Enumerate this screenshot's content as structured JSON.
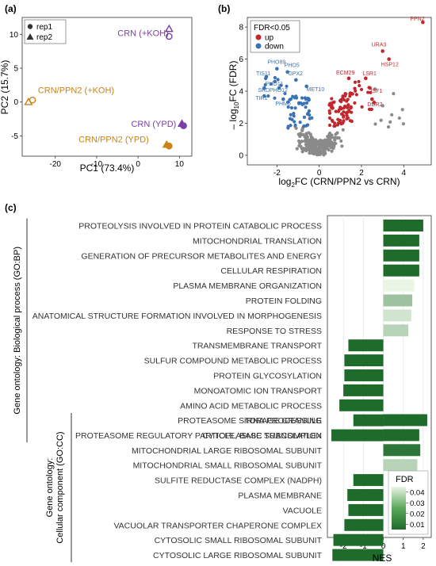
{
  "panels": {
    "a": "(a)",
    "b": "(b)",
    "c": "(c)"
  },
  "colors": {
    "purple": "#7a3fa3",
    "orange": "#c98316",
    "up": "#c0282d",
    "down": "#3a73b5",
    "ns": "#8a8a8a",
    "fdr_high": "#eaf5e6",
    "fdr_low": "#1f6b2c"
  },
  "chart_data": [
    {
      "id": "pca",
      "type": "scatter",
      "title": "",
      "xlabel": "PC1 (73.4%)",
      "ylabel": "PC2 (15.7%)",
      "xlim": [
        -28,
        13
      ],
      "ylim": [
        -8,
        12.5
      ],
      "xticks": [
        -20,
        -10,
        0,
        10
      ],
      "yticks": [
        -5,
        0,
        5,
        10
      ],
      "legend": {
        "position": "top-left",
        "items": [
          {
            "label": "rep1",
            "shape": "circle"
          },
          {
            "label": "rep2",
            "shape": "triangle"
          }
        ]
      },
      "groups": [
        {
          "label": "CRN (+KOH)",
          "color": "#7a3fa3",
          "filled": false,
          "points": [
            {
              "x": 7.5,
              "y": 10.8,
              "rep": "rep2"
            },
            {
              "x": 7.5,
              "y": 9.7,
              "rep": "rep1"
            }
          ]
        },
        {
          "label": "CRN/PPN2 (+KOH)",
          "color": "#c98316",
          "filled": false,
          "points": [
            {
              "x": -26.5,
              "y": 0.0,
              "rep": "rep2"
            },
            {
              "x": -25.5,
              "y": 0.3,
              "rep": "rep1"
            }
          ]
        },
        {
          "label": "CRN (YPD)",
          "color": "#7a3fa3",
          "filled": true,
          "points": [
            {
              "x": 10.6,
              "y": -3.2,
              "rep": "rep2"
            },
            {
              "x": 11.0,
              "y": -3.5,
              "rep": "rep1"
            }
          ]
        },
        {
          "label": "CRN/PPN2 (YPD)",
          "color": "#c98316",
          "filled": true,
          "points": [
            {
              "x": 6.9,
              "y": -6.3,
              "rep": "rep2"
            },
            {
              "x": 7.5,
              "y": -6.5,
              "rep": "rep1"
            }
          ]
        }
      ]
    },
    {
      "id": "volcano",
      "type": "scatter",
      "title": "",
      "xlabel_main": "log",
      "xlabel_sub": "2",
      "xlabel_rest": "FC (CRN/PPN2 vs CRN)",
      "ylabel_neg": "– log",
      "ylabel_sub": "10",
      "ylabel_rest": "FC (FDR)",
      "xlim": [
        -3.4,
        5.3
      ],
      "ylim": [
        -0.6,
        8.6
      ],
      "xticks": [
        -2,
        0,
        2,
        4
      ],
      "yticks": [
        0,
        2,
        4,
        6,
        8
      ],
      "legend": {
        "title": "FDR<0.05",
        "position": "top-left",
        "items": [
          {
            "label": "up",
            "color": "#c0282d"
          },
          {
            "label": "down",
            "color": "#3a73b5"
          }
        ]
      },
      "labeled_points": [
        {
          "label": "PPN2",
          "x": 4.9,
          "y": 8.3,
          "group": "up"
        },
        {
          "label": "URA3",
          "x": 3.0,
          "y": 6.5,
          "group": "up"
        },
        {
          "label": "HSP12",
          "x": 3.3,
          "y": 6.0,
          "group": "up"
        },
        {
          "label": "ECM29",
          "x": 1.4,
          "y": 4.8,
          "group": "up"
        },
        {
          "label": "LSR1",
          "x": 2.2,
          "y": 4.8,
          "group": "up"
        },
        {
          "label": "ISF1",
          "x": 2.4,
          "y": 4.2,
          "group": "up"
        },
        {
          "label": "DDR2",
          "x": 2.5,
          "y": 3.5,
          "group": "up"
        },
        {
          "label": "PHO89",
          "x": -2.0,
          "y": 5.4,
          "group": "down"
        },
        {
          "label": "PHO5",
          "x": -1.5,
          "y": 5.2,
          "group": "down"
        },
        {
          "label": "TIS11",
          "x": -2.5,
          "y": 4.9,
          "group": "down"
        },
        {
          "label": "PHO11",
          "x": -2.1,
          "y": 4.6,
          "group": "down"
        },
        {
          "label": "GPX2",
          "x": -1.1,
          "y": 4.7,
          "group": "down"
        },
        {
          "label": "SRD",
          "x": -2.6,
          "y": 4.2,
          "group": "down"
        },
        {
          "label": "PHO12",
          "x": -1.9,
          "y": 4.2,
          "group": "down"
        },
        {
          "label": "MET10",
          "x": -0.6,
          "y": 4.3,
          "group": "down"
        },
        {
          "label": "TIR1",
          "x": -2.6,
          "y": 3.7,
          "group": "down"
        },
        {
          "label": "PHM6",
          "x": -1.7,
          "y": 3.5,
          "group": "down"
        }
      ]
    },
    {
      "id": "gsea",
      "type": "bar",
      "orientation": "horizontal",
      "xlabel": "NES",
      "xlim": [
        -2.8,
        2.4
      ],
      "xticks": [
        -2,
        -1,
        0,
        1,
        2
      ],
      "legend": {
        "title": "FDR",
        "position": "bottom-right",
        "ticks": [
          0.04,
          0.03,
          0.02,
          0.01
        ],
        "range": [
          0.005,
          0.045
        ]
      },
      "groups": [
        {
          "name": "Gene ontology: Biological process (GO:BP)",
          "categories": [
            "PROTEOLYSIS INVOLVED IN PROTEIN CATABOLIC PROCESS",
            "MITOCHONDRIAL TRANSLATION",
            "GENERATION OF PRECURSOR METABOLITES AND ENERGY",
            "CELLULAR RESPIRATION",
            "PLASMA MEMBRANE ORGANIZATION",
            "PROTEIN FOLDING",
            "ANATOMICAL STRUCTURE FORMATION INVOLVED IN MORPHOGENESIS",
            "RESPONSE TO STRESS",
            "TRANSMEMBRANE TRANSPORT",
            "SULFUR COMPOUND METABOLIC PROCESS",
            "PROTEIN GLYCOSYLATION",
            "MONOATOMIC ION TRANSPORT",
            "AMINO ACID METABOLIC PROCESS",
            "rRNA PROCESSING",
            "CYTOPLASMIC TRANSLATION"
          ],
          "values": [
            2.0,
            1.8,
            1.8,
            1.8,
            1.55,
            1.45,
            1.4,
            1.25,
            -1.75,
            -1.95,
            -1.95,
            -2.0,
            -2.2,
            -1.5,
            -2.6
          ],
          "fdr": [
            0.005,
            0.005,
            0.005,
            0.005,
            0.045,
            0.03,
            0.04,
            0.035,
            0.005,
            0.005,
            0.005,
            0.005,
            0.005,
            0.005,
            0.005
          ]
        },
        {
          "name": "Gene ontology: Cellular component (GO:CC)",
          "categories": [
            "PROTEASOME STORAGE GRANULE",
            "PROTEASOME REGULATORY PARTICLE, BASE SUBCOMPLEX",
            "MITOCHONDRIAL LARGE RIBOSOMAL SUBUNIT",
            "MITOCHONDRIAL SMALL RIBOSOMAL SUBUNIT",
            "SULFITE REDUCTASE COMPLEX (NADPH)",
            "PLASMA MEMBRANE",
            "VACUOLE",
            "VACUOLAR TRANSPORTER CHAPERONE COMPLEX",
            "CYTOSOLIC SMALL RIBOSOMAL SUBUNIT",
            "CYTOSOLIC LARGE RIBOSOMAL SUBUNIT"
          ],
          "values": [
            2.2,
            1.8,
            1.85,
            1.7,
            -1.5,
            -1.8,
            -1.75,
            -1.95,
            -2.5,
            -2.55
          ],
          "fdr": [
            0.005,
            0.005,
            0.008,
            0.035,
            0.005,
            0.005,
            0.005,
            0.005,
            0.005,
            0.005
          ]
        }
      ],
      "group_labels": [
        {
          "lines": [
            "Gene ontology: Biological process (GO:BP)"
          ]
        },
        {
          "lines": [
            "Gene ontology:",
            "Cellular component (GO:CC)"
          ]
        }
      ]
    }
  ]
}
